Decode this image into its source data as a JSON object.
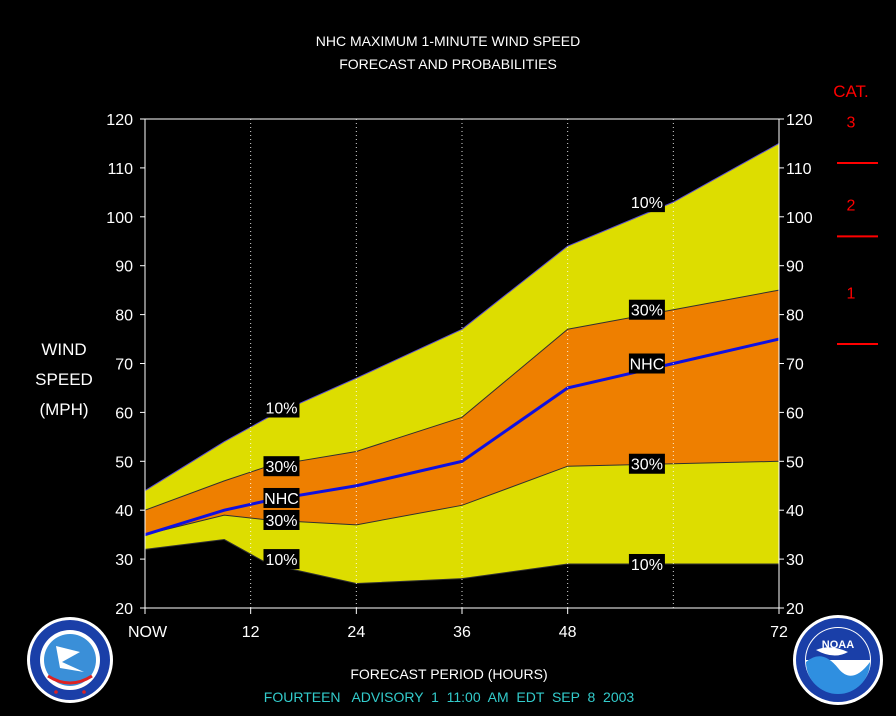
{
  "chart_data": {
    "type": "area",
    "title": "NHC MAXIMUM 1-MINUTE WIND SPEED",
    "subtitle": "FORECAST AND PROBABILITIES",
    "ylabel_lines": [
      "WIND",
      "SPEED",
      "(MPH)"
    ],
    "xlabel": "FORECAST PERIOD (HOURS)",
    "advisory": "FOURTEEN   ADVISORY  1  11:00  AM  EDT  SEP  8  2003",
    "x_ticks": [
      {
        "x": 0,
        "label": "NOW"
      },
      {
        "x": 12,
        "label": "12"
      },
      {
        "x": 24,
        "label": "24"
      },
      {
        "x": 36,
        "label": "36"
      },
      {
        "x": 48,
        "label": "48"
      },
      {
        "x": 72,
        "label": "72"
      }
    ],
    "xlim": [
      0,
      72
    ],
    "ylim": [
      20,
      120
    ],
    "y_ticks": [
      20,
      30,
      40,
      50,
      60,
      70,
      80,
      90,
      100,
      110,
      120
    ],
    "dotted_vertical_gridlines_at": [
      12,
      24,
      36,
      48,
      60
    ],
    "x": [
      0,
      9,
      14,
      24,
      36,
      48,
      60,
      72
    ],
    "series": [
      {
        "name": "10%",
        "role": "upper-10",
        "values": [
          44,
          54,
          59,
          67,
          77,
          94,
          103,
          115
        ]
      },
      {
        "name": "30%",
        "role": "upper-30",
        "values": [
          40,
          46,
          49,
          52,
          59,
          77,
          81,
          85
        ]
      },
      {
        "name": "NHC",
        "role": "forecast",
        "values": [
          35,
          40,
          42,
          45,
          50,
          65,
          70,
          75
        ]
      },
      {
        "name": "30%",
        "role": "lower-30",
        "values": [
          35,
          39,
          38,
          37,
          41,
          49,
          49.5,
          50
        ]
      },
      {
        "name": "10%",
        "role": "lower-10",
        "values": [
          32,
          34,
          29,
          25,
          26,
          29,
          29,
          29
        ]
      }
    ],
    "series_labels": [
      {
        "text": "10%",
        "x": 15.5,
        "y": 61
      },
      {
        "text": "30%",
        "x": 15.5,
        "y": 49
      },
      {
        "text": "NHC",
        "x": 15.5,
        "y": 42.5
      },
      {
        "text": "30%",
        "x": 15.5,
        "y": 38
      },
      {
        "text": "10%",
        "x": 15.5,
        "y": 30
      },
      {
        "text": "10%",
        "x": 57,
        "y": 103
      },
      {
        "text": "30%",
        "x": 57,
        "y": 81
      },
      {
        "text": "NHC",
        "x": 57,
        "y": 70
      },
      {
        "text": "30%",
        "x": 57,
        "y": 49.5
      },
      {
        "text": "10%",
        "x": 57,
        "y": 29
      }
    ],
    "category_scale": {
      "title": "CAT.",
      "labels": [
        {
          "text": "3",
          "y": 119.5
        },
        {
          "text": "2",
          "y": 102.5
        },
        {
          "text": "1",
          "y": 84.5
        }
      ],
      "thresholds": [
        111,
        96,
        74
      ]
    },
    "colors": {
      "background": "#000000",
      "outer_band": "#DDDD00",
      "inner_band": "#EE7F00",
      "forecast_line": "#1010E0",
      "text": "#FFFFFF",
      "category": "#FF0000",
      "advisory": "#33CCCC",
      "plot_frame": "#FFFFFF"
    },
    "grid": false,
    "legend": "none"
  },
  "logos": {
    "left": {
      "name": "nws-logo",
      "text": "NATIONAL WEATHER SERVICE"
    },
    "right": {
      "name": "noaa-logo",
      "text": "NOAA"
    }
  }
}
